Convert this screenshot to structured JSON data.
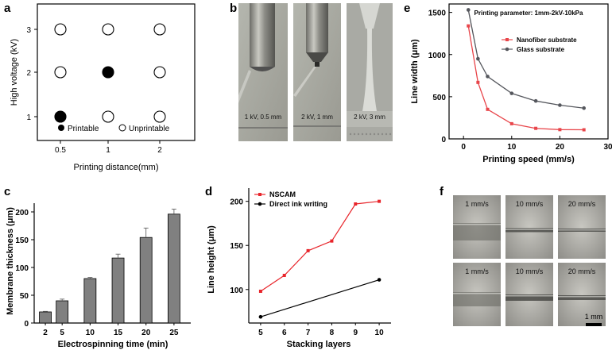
{
  "panel_letters": {
    "a": "a",
    "b": "b",
    "c": "c",
    "d": "d",
    "e": "e",
    "f": "f"
  },
  "chart_data": [
    {
      "id": "a",
      "type": "scatter",
      "xlabel": "Printing distance(mm)",
      "ylabel": "High voltage (kV)",
      "x_categories": [
        "0.5",
        "1",
        "2"
      ],
      "y_categories": [
        "1",
        "2",
        "3"
      ],
      "points": [
        {
          "x": "0.5",
          "y": "1",
          "printable": true
        },
        {
          "x": "1",
          "y": "1",
          "printable": false
        },
        {
          "x": "2",
          "y": "1",
          "printable": false
        },
        {
          "x": "0.5",
          "y": "2",
          "printable": false
        },
        {
          "x": "1",
          "y": "2",
          "printable": true
        },
        {
          "x": "2",
          "y": "2",
          "printable": false
        },
        {
          "x": "0.5",
          "y": "3",
          "printable": false
        },
        {
          "x": "1",
          "y": "3",
          "printable": false
        },
        {
          "x": "2",
          "y": "3",
          "printable": false
        }
      ],
      "legend": {
        "printable": "Printable",
        "unprintable": "Unprintable"
      }
    },
    {
      "id": "c",
      "type": "bar",
      "categories": [
        "2",
        "5",
        "10",
        "15",
        "20",
        "25"
      ],
      "x_values": [
        2,
        5,
        10,
        15,
        20,
        25
      ],
      "values": [
        20,
        40,
        80,
        117,
        154,
        196
      ],
      "errors": [
        1,
        3,
        2,
        7,
        17,
        9
      ],
      "xlabel": "Electrospinning time (min)",
      "ylabel": "Membrane thickness (μm)",
      "xlim": [
        0,
        28
      ],
      "ylim": [
        0,
        210
      ],
      "yticks": [
        0,
        50,
        100,
        150,
        200
      ]
    },
    {
      "id": "d",
      "type": "line",
      "xlabel": "Stacking layers",
      "ylabel": "Line height (μm)",
      "xlim": [
        4.5,
        10.5
      ],
      "ylim": [
        62,
        215
      ],
      "xticks": [
        5,
        6,
        7,
        8,
        9,
        10
      ],
      "yticks": [
        100,
        150,
        200
      ],
      "series": [
        {
          "name": "NSCAM",
          "color": "#e8252b",
          "marker": "square",
          "x": [
            5,
            6,
            7,
            8,
            9,
            10
          ],
          "y": [
            98,
            116,
            144,
            155,
            197,
            200
          ]
        },
        {
          "name": "Direct ink writing",
          "color": "#000000",
          "marker": "circle",
          "x": [
            5,
            10
          ],
          "y": [
            69,
            111
          ]
        }
      ]
    },
    {
      "id": "e",
      "type": "line",
      "title": "Printing parameter: 1mm-2kV-10kPa",
      "xlabel": "Printing speed (mm/s)",
      "ylabel": "Line width (μm)",
      "xlim": [
        -3,
        30
      ],
      "ylim": [
        0,
        1600
      ],
      "xticks": [
        0,
        10,
        20,
        30
      ],
      "yticks": [
        0,
        500,
        1000,
        1500
      ],
      "series": [
        {
          "name": "Nanofiber substrate",
          "color": "#e8454a",
          "marker": "square",
          "x": [
            1,
            3,
            5,
            10,
            15,
            20,
            25
          ],
          "y": [
            1340,
            670,
            350,
            180,
            125,
            110,
            108
          ]
        },
        {
          "name": "Glass substrate",
          "color": "#55575d",
          "marker": "circle",
          "x": [
            1,
            3,
            5,
            10,
            15,
            20,
            25
          ],
          "y": [
            1530,
            950,
            740,
            540,
            450,
            400,
            365
          ]
        }
      ]
    }
  ],
  "photos_b": {
    "labels": [
      "1 kV, 0.5 mm",
      "2 kV, 1 mm",
      "2 kV, 3 mm"
    ]
  },
  "photos_f": {
    "top": [
      "1 mm/s",
      "10 mm/s",
      "20 mm/s"
    ],
    "bottom": [
      "1 mm/s",
      "10 mm/s",
      "20 mm/s"
    ],
    "scale_bar": "1 mm"
  },
  "colors": {
    "bar_fill": "#808080",
    "nscam": "#e8252b",
    "nanofiber": "#e8454a",
    "glass": "#55575d",
    "photo_bg": "#b9b8b2"
  }
}
